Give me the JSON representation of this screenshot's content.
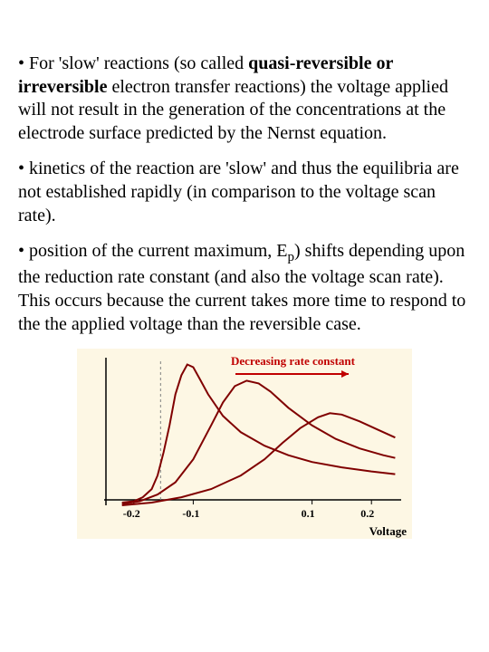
{
  "paragraphs": {
    "p1_pre": "• For 'slow' reactions (so called ",
    "p1_bold": "quasi-reversible or irreversible",
    "p1_post": " electron transfer reactions) the voltage applied will not result in the generation of the concentrations at the electrode surface predicted by the Nernst equation.",
    "p2": "• kinetics of the reaction are 'slow' and thus the equilibria are not established rapidly (in comparison to the voltage scan rate).",
    "p3_pre": "• position of the current maximum, E",
    "p3_sub": "p",
    "p3_post": ") shifts depending upon the reduction rate constant (and also the voltage scan rate). This occurs because the current takes more time to respond to the the applied voltage than the reversible case."
  },
  "chart": {
    "type": "line",
    "annotation": "Decreasing rate constant",
    "annotation_color": "#c00000",
    "arrow_color": "#c00000",
    "xlabel": "Voltage",
    "background_color": "#fdf7e4",
    "axis_color": "#000000",
    "xrange": [
      -0.25,
      0.25
    ],
    "yrange": [
      -0.1,
      1.05
    ],
    "x_axis_y": 0,
    "ticks": [
      "-0.2",
      "-0.1",
      "0.1",
      "0.2"
    ],
    "tick_positions": [
      -0.2,
      -0.1,
      0.1,
      0.2
    ],
    "curves": [
      {
        "color": "#800000",
        "width": 2,
        "points": [
          [
            -0.22,
            -0.02
          ],
          [
            -0.2,
            -0.01
          ],
          [
            -0.185,
            0.02
          ],
          [
            -0.17,
            0.08
          ],
          [
            -0.16,
            0.18
          ],
          [
            -0.15,
            0.35
          ],
          [
            -0.14,
            0.55
          ],
          [
            -0.13,
            0.78
          ],
          [
            -0.12,
            0.92
          ],
          [
            -0.11,
            1.0
          ],
          [
            -0.1,
            0.98
          ],
          [
            -0.09,
            0.9
          ],
          [
            -0.075,
            0.78
          ],
          [
            -0.05,
            0.62
          ],
          [
            -0.02,
            0.5
          ],
          [
            0.02,
            0.4
          ],
          [
            0.06,
            0.33
          ],
          [
            0.1,
            0.28
          ],
          [
            0.15,
            0.24
          ],
          [
            0.2,
            0.21
          ],
          [
            0.24,
            0.19
          ]
        ]
      },
      {
        "color": "#800000",
        "width": 2,
        "points": [
          [
            -0.22,
            -0.03
          ],
          [
            -0.19,
            -0.01
          ],
          [
            -0.16,
            0.04
          ],
          [
            -0.13,
            0.13
          ],
          [
            -0.1,
            0.3
          ],
          [
            -0.07,
            0.55
          ],
          [
            -0.05,
            0.72
          ],
          [
            -0.03,
            0.84
          ],
          [
            -0.01,
            0.88
          ],
          [
            0.01,
            0.86
          ],
          [
            0.03,
            0.8
          ],
          [
            0.06,
            0.68
          ],
          [
            0.1,
            0.55
          ],
          [
            0.14,
            0.45
          ],
          [
            0.18,
            0.38
          ],
          [
            0.22,
            0.33
          ],
          [
            0.24,
            0.31
          ]
        ]
      },
      {
        "color": "#800000",
        "width": 2,
        "points": [
          [
            -0.22,
            -0.04
          ],
          [
            -0.17,
            -0.02
          ],
          [
            -0.12,
            0.02
          ],
          [
            -0.07,
            0.08
          ],
          [
            -0.02,
            0.18
          ],
          [
            0.02,
            0.3
          ],
          [
            0.05,
            0.42
          ],
          [
            0.08,
            0.53
          ],
          [
            0.11,
            0.61
          ],
          [
            0.13,
            0.64
          ],
          [
            0.15,
            0.63
          ],
          [
            0.18,
            0.58
          ],
          [
            0.21,
            0.52
          ],
          [
            0.24,
            0.46
          ]
        ]
      }
    ],
    "y_guideline_x": -0.155,
    "guideline_dash": "3,3",
    "guideline_color": "#808080"
  }
}
